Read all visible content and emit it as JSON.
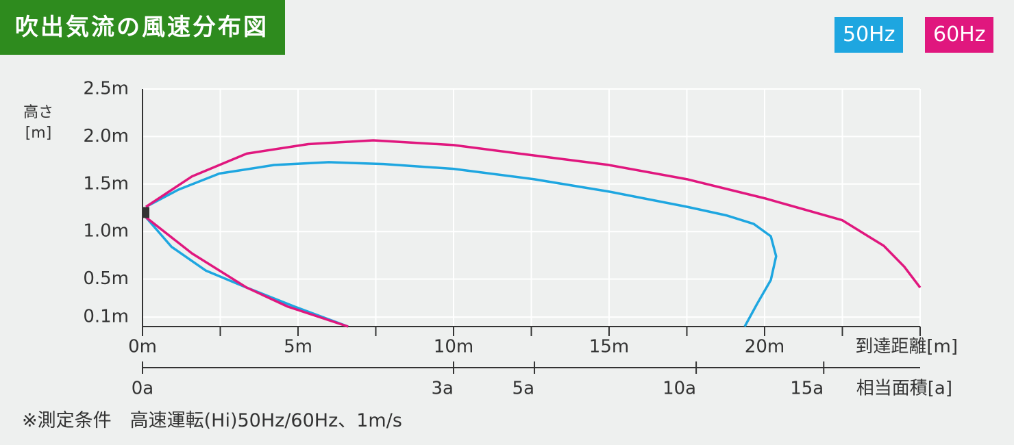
{
  "chart_data": {
    "type": "line",
    "title": "吹出気流の風速分布図",
    "y_label": "高さ[m]",
    "x_label": "到達距離[m]",
    "x2_label": "相当面積[a]",
    "note": "※測定条件　高速運転(Hi)50Hz/60Hz、1m/s",
    "xlim": [
      0,
      25
    ],
    "ylim": [
      0,
      2.5
    ],
    "xticks": [
      {
        "value": 0,
        "label": "0m"
      },
      {
        "value": 5,
        "label": "5m"
      },
      {
        "value": 10,
        "label": "10m"
      },
      {
        "value": 15,
        "label": "15m"
      },
      {
        "value": 20,
        "label": "20m"
      }
    ],
    "xminor": [
      2.5,
      7.5,
      12.5,
      17.5,
      22.5,
      25
    ],
    "yticks": [
      {
        "value": 0.1,
        "label": "0.1m"
      },
      {
        "value": 0.5,
        "label": "0.5m"
      },
      {
        "value": 1.0,
        "label": "1.0m"
      },
      {
        "value": 1.5,
        "label": "1.5m"
      },
      {
        "value": 2.0,
        "label": "2.0m"
      },
      {
        "value": 2.5,
        "label": "2.5m"
      }
    ],
    "area_ticks": [
      {
        "value": 0,
        "label": "0a",
        "distance": 0
      },
      {
        "value": 3,
        "label": "3a",
        "distance": 10
      },
      {
        "value": 5,
        "label": "5a",
        "distance": 12.6
      },
      {
        "value": 10,
        "label": "10a",
        "distance": 17.8
      },
      {
        "value": 15,
        "label": "15a",
        "distance": 21.9
      }
    ],
    "grid": true,
    "series": [
      {
        "name": "50Hz",
        "color": "#1ea6e0",
        "curves": [
          {
            "x": [
              0.11,
              1.15,
              2.47,
              4.23,
              5.99,
              7.75,
              10,
              12.6,
              15,
              17.51,
              18.77,
              19.65,
              20.2,
              20.37,
              20.2,
              19.76,
              19.36
            ],
            "values": [
              1.26,
              1.44,
              1.61,
              1.7,
              1.73,
              1.71,
              1.66,
              1.55,
              1.42,
              1.26,
              1.17,
              1.08,
              0.95,
              0.74,
              0.49,
              0.24,
              0
            ]
          },
          {
            "x": [
              0.11,
              0.93,
              2.03,
              3.35,
              4.89,
              6.61
            ],
            "values": [
              1.15,
              0.84,
              0.59,
              0.41,
              0.21,
              0
            ]
          }
        ]
      },
      {
        "name": "60Hz",
        "color": "#e0177e",
        "curves": [
          {
            "x": [
              0.11,
              1.59,
              3.35,
              5.33,
              7.42,
              10,
              12.6,
              15,
              17.51,
              20,
              22.49,
              23.83,
              24.49,
              25
            ],
            "values": [
              1.26,
              1.58,
              1.82,
              1.92,
              1.96,
              1.91,
              1.8,
              1.7,
              1.55,
              1.35,
              1.12,
              0.85,
              0.63,
              0.41
            ]
          },
          {
            "x": [
              0.11,
              1.59,
              3.35,
              4.67,
              6.61
            ],
            "values": [
              1.15,
              0.77,
              0.41,
              0.21,
              0
            ]
          }
        ]
      }
    ]
  }
}
